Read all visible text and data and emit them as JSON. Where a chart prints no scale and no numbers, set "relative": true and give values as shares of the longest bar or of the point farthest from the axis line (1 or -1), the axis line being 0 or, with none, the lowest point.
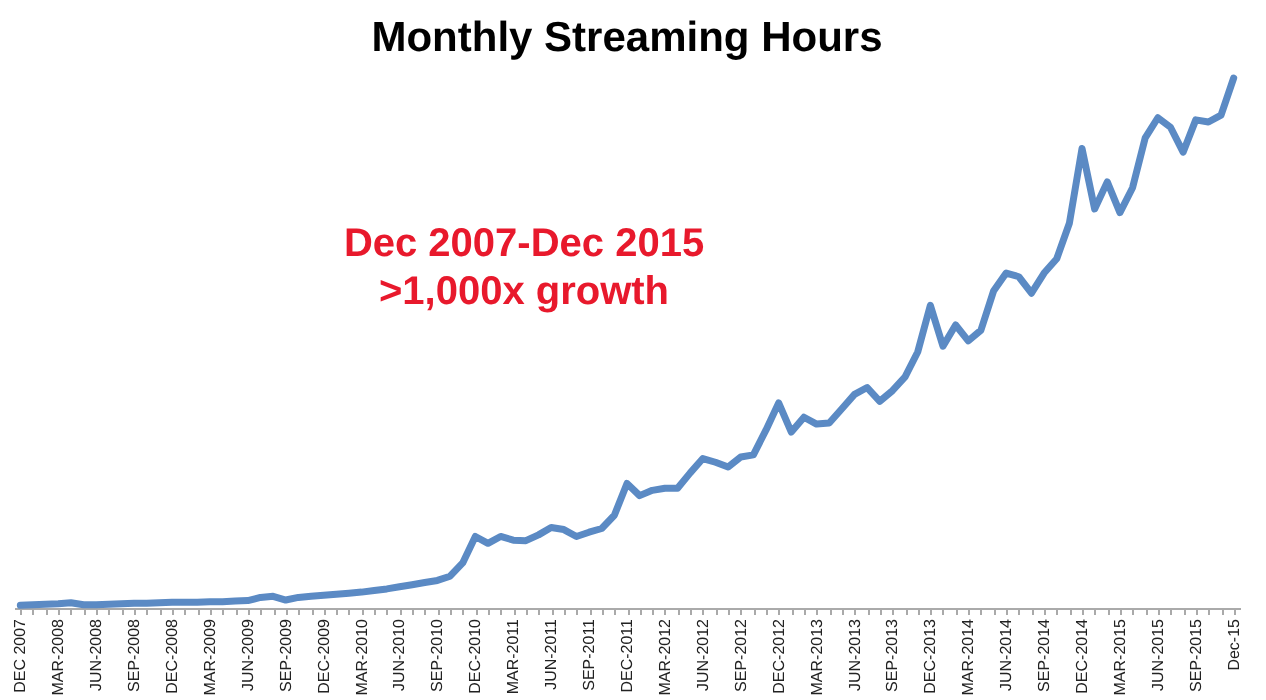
{
  "chart_data": {
    "type": "line",
    "title": "Monthly Streaming Hours",
    "relative": true,
    "categories": [
      "DEC 2007",
      null,
      null,
      "MAR-2008",
      null,
      null,
      "JUN-2008",
      null,
      null,
      "SEP-2008",
      null,
      null,
      "DEC-2008",
      null,
      null,
      "MAR-2009",
      null,
      null,
      "JUN-2009",
      null,
      null,
      "SEP-2009",
      null,
      null,
      "DEC-2009",
      null,
      null,
      "MAR-2010",
      null,
      null,
      "JUN-2010",
      null,
      null,
      "SEP-2010",
      null,
      null,
      "DEC-2010",
      null,
      null,
      "MAR-2011",
      null,
      null,
      "JUN-2011",
      null,
      null,
      "SEP-2011",
      null,
      null,
      "DEC-2011",
      null,
      null,
      "MAR-2012",
      null,
      null,
      "JUN-2012",
      null,
      null,
      "SEP-2012",
      null,
      null,
      "DEC-2012",
      null,
      null,
      "MAR-2013",
      null,
      null,
      "JUN-2013",
      null,
      null,
      "SEP-2013",
      null,
      null,
      "DEC-2013",
      null,
      null,
      "MAR-2014",
      null,
      null,
      "JUN-2014",
      null,
      null,
      "SEP-2014",
      null,
      null,
      "DEC-2014",
      null,
      null,
      "MAR-2015",
      null,
      null,
      "JUN-2015",
      null,
      null,
      "SEP-2015",
      null,
      null,
      "Dec-15"
    ],
    "series": [
      {
        "color": "#5b8ac4",
        "values": [
          0.005,
          0.006,
          0.007,
          0.008,
          0.01,
          0.006,
          0.006,
          0.007,
          0.008,
          0.009,
          0.009,
          0.01,
          0.011,
          0.011,
          0.011,
          0.012,
          0.012,
          0.013,
          0.014,
          0.02,
          0.022,
          0.015,
          0.02,
          0.022,
          0.024,
          0.026,
          0.028,
          0.03,
          0.033,
          0.036,
          0.04,
          0.044,
          0.048,
          0.052,
          0.06,
          0.085,
          0.135,
          0.122,
          0.135,
          0.128,
          0.127,
          0.138,
          0.152,
          0.148,
          0.135,
          0.143,
          0.15,
          0.175,
          0.235,
          0.212,
          0.222,
          0.226,
          0.226,
          0.255,
          0.282,
          0.275,
          0.266,
          0.285,
          0.289,
          0.336,
          0.387,
          0.332,
          0.36,
          0.347,
          0.349,
          0.376,
          0.403,
          0.416,
          0.39,
          0.41,
          0.436,
          0.483,
          0.571,
          0.494,
          0.534,
          0.504,
          0.524,
          0.598,
          0.632,
          0.625,
          0.594,
          0.632,
          0.659,
          0.726,
          0.867,
          0.753,
          0.804,
          0.746,
          0.793,
          0.887,
          0.925,
          0.907,
          0.86,
          0.921,
          0.917,
          0.93,
          1.0
        ]
      }
    ],
    "annotations": [
      "Dec 2007-Dec 2015",
      ">1,000x growth"
    ],
    "grid": false
  }
}
